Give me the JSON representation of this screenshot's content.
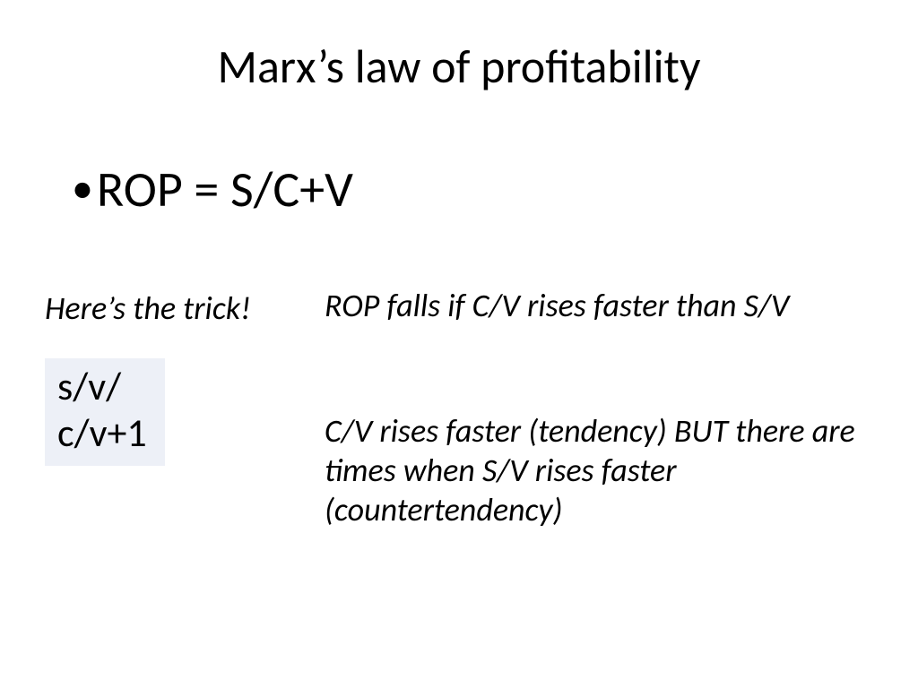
{
  "title": "Marx’s law of profitability",
  "bullet_formula": "ROP = S/C+V",
  "trick_label": "Here’s the trick!",
  "formula_box_line1": "s/v/",
  "formula_box_line2": "c/v+1",
  "paragraph1": "ROP falls if C/V rises faster than S/V",
  "paragraph2": "C/V rises faster  (tendency) BUT there are times when S/V rises faster (countertendency)",
  "colors": {
    "background": "#ffffff",
    "text": "#000000",
    "formula_box_bg": "#edf0f7"
  },
  "fonts": {
    "family": "Calibri",
    "title_size_pt": 40,
    "formula_size_pt": 42,
    "body_size_pt": 27,
    "box_size_pt": 33
  }
}
